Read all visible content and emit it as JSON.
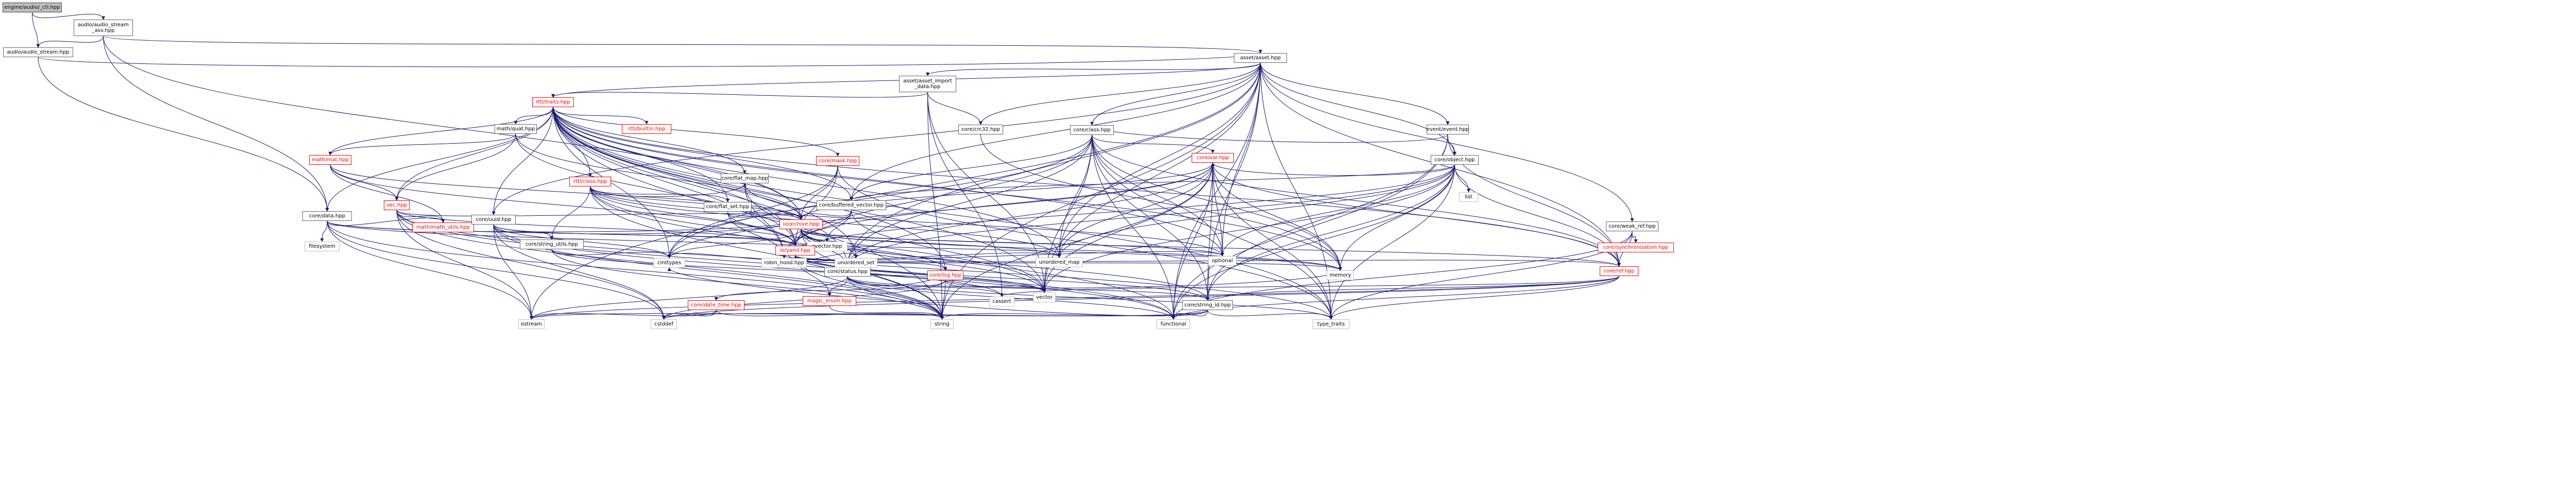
{
  "diagram": {
    "colors": {
      "edge": "#191970",
      "root_fill": "#bfbfbf",
      "red": "#ff0000",
      "ext_border": "#bfbfbf"
    },
    "nodes": [
      {
        "id": "root",
        "label": "engine/audio/_ctl.hpp",
        "style": "root"
      },
      {
        "id": "audio_stream_asv",
        "label": "audio/audio_stream\n_asv.hpp"
      },
      {
        "id": "audio_stream",
        "label": "audio/audio_stream.hpp"
      },
      {
        "id": "asset",
        "label": "asset/asset.hpp"
      },
      {
        "id": "asset_import",
        "label": "asset/asset_import\n_data.hpp"
      },
      {
        "id": "rtti_traits",
        "label": "rtti/traits.hpp",
        "style": "red"
      },
      {
        "id": "rtti_builtin",
        "label": "rtti/builtin.hpp",
        "style": "red"
      },
      {
        "id": "math_quat",
        "label": "math/quat.hpp"
      },
      {
        "id": "math_mat",
        "label": "math/mat.hpp",
        "style": "red"
      },
      {
        "id": "vec",
        "label": "vec.hpp",
        "style": "red"
      },
      {
        "id": "math_utils",
        "label": "math/math_utils.hpp",
        "style": "red"
      },
      {
        "id": "core_data",
        "label": "core/data.hpp"
      },
      {
        "id": "filesystem",
        "label": "filesystem",
        "style": "plain"
      },
      {
        "id": "core_uuid",
        "label": "core/uuid.hpp"
      },
      {
        "id": "string_utils",
        "label": "core/string_utils.hpp"
      },
      {
        "id": "rtti_class",
        "label": "rtti/class.hpp",
        "style": "red"
      },
      {
        "id": "flat_set",
        "label": "core/flat_set.hpp"
      },
      {
        "id": "flat_map",
        "label": "core/flat_map.hpp"
      },
      {
        "id": "core_mask",
        "label": "core/mask.hpp",
        "style": "red"
      },
      {
        "id": "buffered_vector",
        "label": "core/buffered_vector.hpp"
      },
      {
        "id": "svector",
        "label": "svector.hpp",
        "style": "plain"
      },
      {
        "id": "io_archive",
        "label": "io/archive.hpp",
        "style": "red"
      },
      {
        "id": "io_yaml",
        "label": "io/yaml.hpp",
        "style": "red"
      },
      {
        "id": "core_crc32",
        "label": "core/crc32.hpp"
      },
      {
        "id": "core_class",
        "label": "core/class.hpp"
      },
      {
        "id": "core_var",
        "label": "core/var.hpp",
        "style": "red"
      },
      {
        "id": "event",
        "label": "event/event.hpp"
      },
      {
        "id": "core_object",
        "label": "core/object.hpp"
      },
      {
        "id": "list",
        "label": "list",
        "style": "plain"
      },
      {
        "id": "weak_ref",
        "label": "core/weak_ref.hpp"
      },
      {
        "id": "synchronization",
        "label": "core/synchronization.hpp",
        "style": "red"
      },
      {
        "id": "core_ref",
        "label": "core/ref.hpp",
        "style": "red"
      },
      {
        "id": "core_status",
        "label": "core/status.hpp"
      },
      {
        "id": "core_log",
        "label": "core/log.hpp",
        "style": "red"
      },
      {
        "id": "magic_enum",
        "label": "magic_enum.hpp",
        "style": "red"
      },
      {
        "id": "date_time",
        "label": "core/date_time.hpp",
        "style": "red"
      },
      {
        "id": "string_id",
        "label": "core/string_id.hpp"
      },
      {
        "id": "cinttypes",
        "label": "cinttypes",
        "style": "plain"
      },
      {
        "id": "robin_hood",
        "label": "robin_hood.hpp",
        "style": "plain"
      },
      {
        "id": "unordered_set",
        "label": "unordered_set",
        "style": "plain"
      },
      {
        "id": "unordered_map",
        "label": "unordered_map",
        "style": "plain"
      },
      {
        "id": "optional",
        "label": "optional",
        "style": "plain"
      },
      {
        "id": "memory",
        "label": "memory",
        "style": "plain"
      },
      {
        "id": "vector",
        "label": "vector",
        "style": "plain"
      },
      {
        "id": "cassert",
        "label": "cassert",
        "style": "plain"
      },
      {
        "id": "ostream",
        "label": "ostream",
        "style": "plain"
      },
      {
        "id": "cstddef",
        "label": "cstddef",
        "style": "plain"
      },
      {
        "id": "string",
        "label": "string",
        "style": "plain"
      },
      {
        "id": "functional",
        "label": "functional",
        "style": "plain"
      },
      {
        "id": "type_traits",
        "label": "type_traits",
        "style": "plain"
      }
    ],
    "edges": [
      [
        "root",
        "audio_stream_asv"
      ],
      [
        "root",
        "audio_stream"
      ],
      [
        "audio_stream_asv",
        "audio_stream"
      ],
      [
        "audio_stream_asv",
        "asset"
      ],
      [
        "audio_stream_asv",
        "core_data"
      ],
      [
        "audio_stream_asv",
        "io_archive"
      ],
      [
        "audio_stream",
        "asset"
      ],
      [
        "audio_stream",
        "core_data"
      ],
      [
        "asset",
        "asset_import"
      ],
      [
        "asset",
        "rtti_traits"
      ],
      [
        "asset",
        "core_crc32"
      ],
      [
        "asset",
        "core_class"
      ],
      [
        "asset",
        "core_object"
      ],
      [
        "asset",
        "event"
      ],
      [
        "asset",
        "weak_ref"
      ],
      [
        "asset",
        "buffered_vector"
      ],
      [
        "asset",
        "core_uuid"
      ],
      [
        "asset",
        "core_ref"
      ],
      [
        "asset",
        "string_id"
      ],
      [
        "asset",
        "vector"
      ],
      [
        "asset",
        "string"
      ],
      [
        "asset",
        "ostream"
      ],
      [
        "asset",
        "functional"
      ],
      [
        "asset",
        "type_traits"
      ],
      [
        "asset",
        "core_status"
      ],
      [
        "asset",
        "optional"
      ],
      [
        "asset",
        "unordered_map"
      ],
      [
        "asset_import",
        "rtti_traits"
      ],
      [
        "asset_import",
        "core_crc32"
      ],
      [
        "asset_import",
        "vector"
      ],
      [
        "asset_import",
        "string"
      ],
      [
        "asset_import",
        "cassert"
      ],
      [
        "rtti_traits",
        "rtti_builtin"
      ],
      [
        "rtti_traits",
        "math_quat"
      ],
      [
        "rtti_traits",
        "math_mat"
      ],
      [
        "rtti_traits",
        "vec"
      ],
      [
        "rtti_traits",
        "core_data"
      ],
      [
        "rtti_traits",
        "core_uuid"
      ],
      [
        "rtti_traits",
        "rtti_class"
      ],
      [
        "rtti_traits",
        "flat_set"
      ],
      [
        "rtti_traits",
        "flat_map"
      ],
      [
        "rtti_traits",
        "core_mask"
      ],
      [
        "rtti_traits",
        "buffered_vector"
      ],
      [
        "rtti_traits",
        "io_archive"
      ],
      [
        "rtti_traits",
        "io_yaml"
      ],
      [
        "rtti_traits",
        "core_ref"
      ],
      [
        "rtti_traits",
        "optional"
      ],
      [
        "rtti_traits",
        "vector"
      ],
      [
        "rtti_traits",
        "unordered_set"
      ],
      [
        "rtti_traits",
        "unordered_map"
      ],
      [
        "rtti_traits",
        "memory"
      ],
      [
        "rtti_traits",
        "string"
      ],
      [
        "rtti_traits",
        "type_traits"
      ],
      [
        "rtti_traits",
        "robin_hood"
      ],
      [
        "rtti_traits",
        "cinttypes"
      ],
      [
        "rtti_traits",
        "core_status"
      ],
      [
        "rtti_traits",
        "core_log"
      ],
      [
        "math_quat",
        "math_mat"
      ],
      [
        "math_quat",
        "vec"
      ],
      [
        "math_quat",
        "io_archive"
      ],
      [
        "math_quat",
        "io_yaml"
      ],
      [
        "math_mat",
        "vec"
      ],
      [
        "math_mat",
        "math_utils"
      ],
      [
        "math_mat",
        "io_archive"
      ],
      [
        "math_mat",
        "io_yaml"
      ],
      [
        "vec",
        "math_utils"
      ],
      [
        "vec",
        "io_archive"
      ],
      [
        "vec",
        "io_yaml"
      ],
      [
        "vec",
        "ostream"
      ],
      [
        "vec",
        "cstddef"
      ],
      [
        "vec",
        "string"
      ],
      [
        "vec",
        "functional"
      ],
      [
        "vec",
        "type_traits"
      ],
      [
        "core_data",
        "filesystem"
      ],
      [
        "core_data",
        "math_utils"
      ],
      [
        "core_data",
        "io_archive"
      ],
      [
        "core_data",
        "io_yaml"
      ],
      [
        "core_data",
        "ostream"
      ],
      [
        "core_data",
        "cstddef"
      ],
      [
        "core_data",
        "string"
      ],
      [
        "core_data",
        "memory"
      ],
      [
        "core_uuid",
        "string_utils"
      ],
      [
        "core_uuid",
        "io_archive"
      ],
      [
        "core_uuid",
        "io_yaml"
      ],
      [
        "core_uuid",
        "cstddef"
      ],
      [
        "core_uuid",
        "string"
      ],
      [
        "core_uuid",
        "ostream"
      ],
      [
        "core_uuid",
        "functional"
      ],
      [
        "core_uuid",
        "cinttypes"
      ],
      [
        "string_utils",
        "string"
      ],
      [
        "string_utils",
        "vector"
      ],
      [
        "string_utils",
        "cinttypes"
      ],
      [
        "rtti_class",
        "flat_set"
      ],
      [
        "rtti_class",
        "flat_map"
      ],
      [
        "rtti_class",
        "string_utils"
      ],
      [
        "rtti_class",
        "io_archive"
      ],
      [
        "rtti_class",
        "io_yaml"
      ],
      [
        "rtti_class",
        "vector"
      ],
      [
        "rtti_class",
        "string"
      ],
      [
        "rtti_class",
        "functional"
      ],
      [
        "rtti_class",
        "unordered_map"
      ],
      [
        "rtti_class",
        "optional"
      ],
      [
        "flat_set",
        "robin_hood"
      ],
      [
        "flat_set",
        "io_archive"
      ],
      [
        "flat_set",
        "io_yaml"
      ],
      [
        "flat_map",
        "robin_hood"
      ],
      [
        "flat_map",
        "io_archive"
      ],
      [
        "flat_map",
        "io_yaml"
      ],
      [
        "core_mask",
        "io_archive"
      ],
      [
        "core_mask",
        "io_yaml"
      ],
      [
        "core_mask",
        "cinttypes"
      ],
      [
        "core_mask",
        "type_traits"
      ],
      [
        "buffered_vector",
        "svector"
      ],
      [
        "buffered_vector",
        "io_archive"
      ],
      [
        "buffered_vector",
        "io_yaml"
      ],
      [
        "buffered_vector",
        "vector"
      ],
      [
        "io_archive",
        "cinttypes"
      ],
      [
        "io_archive",
        "core_status"
      ],
      [
        "io_archive",
        "core_log"
      ],
      [
        "io_archive",
        "optional"
      ],
      [
        "io_archive",
        "vector"
      ],
      [
        "io_archive",
        "unordered_map"
      ],
      [
        "io_archive",
        "unordered_set"
      ],
      [
        "io_archive",
        "memory"
      ],
      [
        "io_archive",
        "string"
      ],
      [
        "io_archive",
        "string_id"
      ],
      [
        "io_archive",
        "core_ref"
      ],
      [
        "io_archive",
        "robin_hood"
      ],
      [
        "io_yaml",
        "core_status"
      ],
      [
        "io_yaml",
        "core_log"
      ],
      [
        "io_yaml",
        "magic_enum"
      ],
      [
        "io_yaml",
        "optional"
      ],
      [
        "io_yaml",
        "vector"
      ],
      [
        "io_yaml",
        "unordered_map"
      ],
      [
        "io_yaml",
        "unordered_set"
      ],
      [
        "io_yaml",
        "cassert"
      ],
      [
        "io_yaml",
        "string"
      ],
      [
        "io_yaml",
        "string_id"
      ],
      [
        "io_yaml",
        "core_ref"
      ],
      [
        "io_yaml",
        "memory"
      ],
      [
        "io_yaml",
        "robin_hood"
      ],
      [
        "io_yaml",
        "cinttypes"
      ],
      [
        "core_crc32",
        "memory"
      ],
      [
        "core_class",
        "core_var"
      ],
      [
        "core_class",
        "buffered_vector"
      ],
      [
        "core_class",
        "core_ref"
      ],
      [
        "core_class",
        "string_id"
      ],
      [
        "core_class",
        "core_status"
      ],
      [
        "core_class",
        "optional"
      ],
      [
        "core_class",
        "vector"
      ],
      [
        "core_class",
        "functional"
      ],
      [
        "core_class",
        "memory"
      ],
      [
        "core_class",
        "cinttypes"
      ],
      [
        "core_class",
        "unordered_map"
      ],
      [
        "core_class",
        "type_traits"
      ],
      [
        "core_class",
        "robin_hood"
      ],
      [
        "core_var",
        "core_ref"
      ],
      [
        "core_var",
        "string_id"
      ],
      [
        "core_var",
        "core_status"
      ],
      [
        "core_var",
        "io_archive"
      ],
      [
        "core_var",
        "io_yaml"
      ],
      [
        "core_var",
        "vector"
      ],
      [
        "core_var",
        "string"
      ],
      [
        "core_var",
        "functional"
      ],
      [
        "core_var",
        "type_traits"
      ],
      [
        "core_var",
        "memory"
      ],
      [
        "core_var",
        "optional"
      ],
      [
        "core_var",
        "unordered_map"
      ],
      [
        "core_var",
        "cinttypes"
      ],
      [
        "event",
        "core_class"
      ],
      [
        "event",
        "core_object"
      ],
      [
        "event",
        "core_ref"
      ],
      [
        "event",
        "string_id"
      ],
      [
        "event",
        "functional"
      ],
      [
        "core_object",
        "core_var"
      ],
      [
        "core_object",
        "list"
      ],
      [
        "core_object",
        "core_ref"
      ],
      [
        "core_object",
        "string_id"
      ],
      [
        "core_object",
        "core_status"
      ],
      [
        "core_object",
        "optional"
      ],
      [
        "core_object",
        "vector"
      ],
      [
        "core_object",
        "functional"
      ],
      [
        "core_object",
        "type_traits"
      ],
      [
        "core_object",
        "memory"
      ],
      [
        "core_object",
        "unordered_map"
      ],
      [
        "core_object",
        "robin_hood"
      ],
      [
        "core_object",
        "buffered_vector"
      ],
      [
        "weak_ref",
        "synchronization"
      ],
      [
        "weak_ref",
        "core_ref"
      ],
      [
        "weak_ref",
        "type_traits"
      ],
      [
        "weak_ref",
        "functional"
      ],
      [
        "core_ref",
        "string_id"
      ],
      [
        "core_ref",
        "functional"
      ],
      [
        "core_ref",
        "type_traits"
      ],
      [
        "core_ref",
        "cstddef"
      ],
      [
        "core_ref",
        "cassert"
      ],
      [
        "core_ref",
        "ostream"
      ],
      [
        "core_status",
        "core_log"
      ],
      [
        "core_status",
        "magic_enum"
      ],
      [
        "core_status",
        "string"
      ],
      [
        "core_status",
        "ostream"
      ],
      [
        "core_status",
        "functional"
      ],
      [
        "core_status",
        "type_traits"
      ],
      [
        "core_status",
        "cassert"
      ],
      [
        "core_status",
        "string_id"
      ],
      [
        "core_log",
        "date_time"
      ],
      [
        "core_log",
        "string"
      ],
      [
        "core_log",
        "memory"
      ],
      [
        "core_log",
        "vector"
      ],
      [
        "core_log",
        "cstddef"
      ],
      [
        "date_time",
        "cstddef"
      ],
      [
        "date_time",
        "ostream"
      ],
      [
        "date_time",
        "string"
      ],
      [
        "string_id",
        "string"
      ],
      [
        "string_id",
        "functional"
      ],
      [
        "string_id",
        "type_traits"
      ],
      [
        "string_id",
        "cstddef"
      ],
      [
        "string_id",
        "ostream"
      ],
      [
        "string_id",
        "cinttypes"
      ],
      [
        "magic_enum",
        "string"
      ]
    ]
  }
}
